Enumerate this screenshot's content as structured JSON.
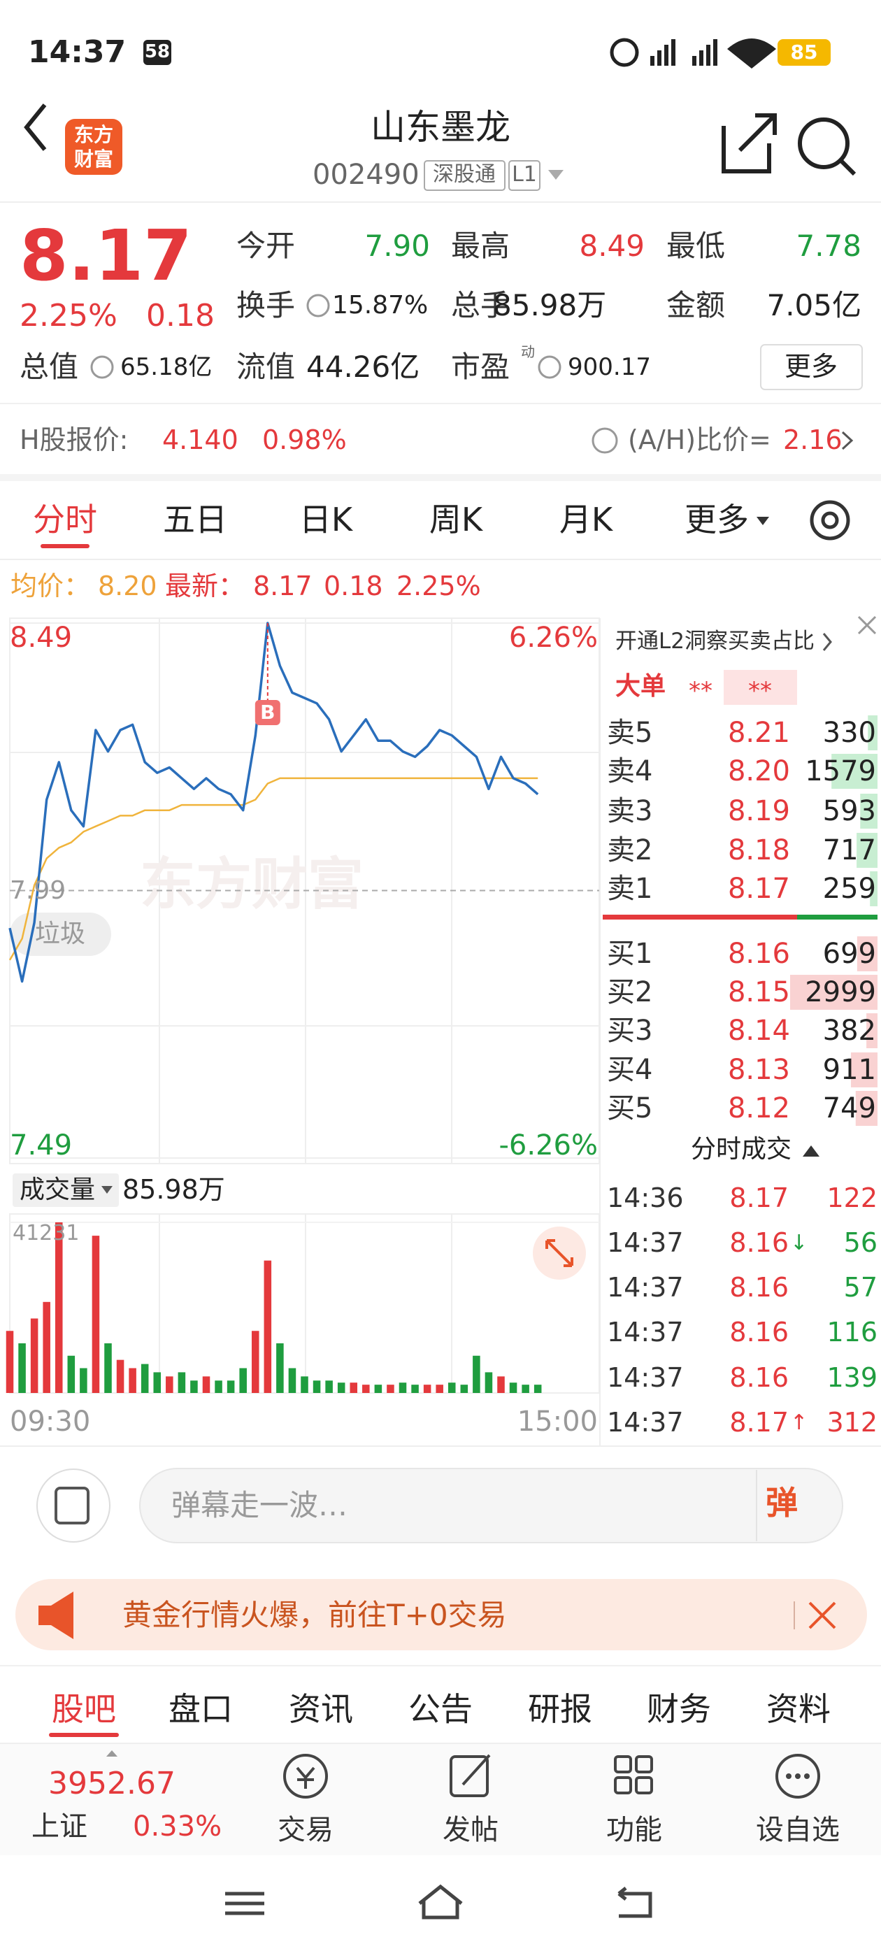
{
  "status_bar": {
    "time": "14:37",
    "badge": "58",
    "battery": "85"
  },
  "header": {
    "logo": [
      "东方",
      "财富"
    ],
    "title": "山东墨龙",
    "code": "002490",
    "tag": "深股通",
    "level": "L1"
  },
  "quote": {
    "price": "8.17",
    "change_pct": "2.25%",
    "change": "0.18",
    "open": {
      "label": "今开",
      "value": "7.90"
    },
    "high": {
      "label": "最高",
      "value": "8.49"
    },
    "low": {
      "label": "最低",
      "value": "7.78"
    },
    "turnover_rate": {
      "label": "换手",
      "value": "15.87%"
    },
    "volume": {
      "label": "总手",
      "value": "85.98万"
    },
    "amount": {
      "label": "金额",
      "value": "7.05亿"
    },
    "market_cap": {
      "label": "总值",
      "value": "65.18亿"
    },
    "float_cap": {
      "label": "流值",
      "value": "44.26亿"
    },
    "pe": {
      "label": "市盈",
      "note": "动",
      "value": "900.17"
    },
    "more": "更多"
  },
  "hshare": {
    "label": "H股报价:",
    "price": "4.140",
    "pct": "0.98%",
    "ratio_label": "(A/H)比价=",
    "ratio": "2.16"
  },
  "tabs": {
    "items": [
      "分时",
      "五日",
      "日K",
      "周K",
      "月K"
    ],
    "more": "更多"
  },
  "intraday": {
    "type": "line",
    "legend": {
      "avg_label": "均价：",
      "avg": "8.20",
      "latest_label": "最新：",
      "latest": "8.17",
      "change": "0.18",
      "pct": "2.25%"
    },
    "xlim": [
      0,
      240
    ],
    "xticks": [
      {
        "value": 0,
        "label": "09:30"
      },
      {
        "value": 240,
        "label": "15:00"
      }
    ],
    "ylim": [
      7.49,
      8.49
    ],
    "yticks": [
      {
        "value": 8.49,
        "label": "8.49"
      },
      {
        "value": 7.99,
        "label": "7.99"
      },
      {
        "value": 7.49,
        "label": "7.49"
      }
    ],
    "pct_labels": [
      "6.26%",
      "-6.26%"
    ],
    "x": [
      0,
      5,
      10,
      15,
      20,
      25,
      30,
      35,
      40,
      45,
      50,
      55,
      60,
      65,
      70,
      75,
      80,
      85,
      90,
      95,
      100,
      105,
      110,
      115,
      120,
      125,
      130,
      135,
      140,
      145,
      150,
      155,
      160,
      165,
      170,
      175,
      180,
      185,
      190,
      195,
      200,
      205,
      210,
      215
    ],
    "price": [
      7.92,
      7.82,
      7.93,
      8.16,
      8.23,
      8.14,
      8.11,
      8.29,
      8.25,
      8.29,
      8.3,
      8.23,
      8.21,
      8.22,
      8.2,
      8.18,
      8.2,
      8.18,
      8.17,
      8.14,
      8.28,
      8.49,
      8.41,
      8.36,
      8.35,
      8.34,
      8.31,
      8.25,
      8.28,
      8.31,
      8.27,
      8.27,
      8.25,
      8.24,
      8.26,
      8.29,
      8.28,
      8.26,
      8.24,
      8.18,
      8.24,
      8.2,
      8.19,
      8.17
    ],
    "avg": [
      7.86,
      7.9,
      8.0,
      8.05,
      8.07,
      8.08,
      8.1,
      8.11,
      8.12,
      8.13,
      8.13,
      8.14,
      8.14,
      8.14,
      8.15,
      8.15,
      8.15,
      8.15,
      8.15,
      8.15,
      8.16,
      8.19,
      8.2,
      8.2,
      8.2,
      8.2,
      8.2,
      8.2,
      8.2,
      8.2,
      8.2,
      8.2,
      8.2,
      8.2,
      8.2,
      8.2,
      8.2,
      8.2,
      8.2,
      8.2,
      8.2,
      8.2,
      8.2,
      8.2
    ],
    "buy_marker": {
      "label": "B",
      "x": 105,
      "price": 8.49
    },
    "tag": "垃圾",
    "watermark": "东方财富",
    "volume": {
      "label": "成交量",
      "total": "85.98万",
      "ylim": [
        0,
        41231
      ],
      "yticks": [
        41231
      ],
      "values": [
        15000,
        12000,
        18000,
        22000,
        41231,
        9000,
        6000,
        38000,
        12000,
        8000,
        6000,
        7000,
        5000,
        4000,
        5000,
        3000,
        4000,
        3000,
        3000,
        6000,
        15000,
        32000,
        12000,
        6000,
        4000,
        3000,
        3000,
        2500,
        2500,
        2000,
        2000,
        2000,
        2500,
        2000,
        2000,
        2000,
        2500,
        2000,
        9000,
        5000,
        4000,
        2500,
        2000,
        2000
      ]
    }
  },
  "order_book": {
    "promo": "开通L2洞察买卖占比",
    "big_order": {
      "label": "大单",
      "buy": "**",
      "sell": "**"
    },
    "asks": [
      {
        "label": "卖5",
        "price": "8.21",
        "qty": 330
      },
      {
        "label": "卖4",
        "price": "8.20",
        "qty": 1579
      },
      {
        "label": "卖3",
        "price": "8.19",
        "qty": 593
      },
      {
        "label": "卖2",
        "price": "8.18",
        "qty": 717
      },
      {
        "label": "卖1",
        "price": "8.17",
        "qty": 259
      }
    ],
    "bids": [
      {
        "label": "买1",
        "price": "8.16",
        "qty": 699
      },
      {
        "label": "买2",
        "price": "8.15",
        "qty": 2999
      },
      {
        "label": "买3",
        "price": "8.14",
        "qty": 382
      },
      {
        "label": "买4",
        "price": "8.13",
        "qty": 911
      },
      {
        "label": "买5",
        "price": "8.12",
        "qty": 749
      }
    ],
    "trades_title": "分时成交",
    "trades": [
      {
        "time": "14:36",
        "price": "8.17",
        "qty": 122,
        "color": "#e4393c"
      },
      {
        "time": "14:37",
        "price": "8.16",
        "arrow": "↓",
        "qty": 56,
        "color": "#1f9d3f"
      },
      {
        "time": "14:37",
        "price": "8.16",
        "qty": 57,
        "color": "#1f9d3f"
      },
      {
        "time": "14:37",
        "price": "8.16",
        "qty": 116,
        "color": "#1f9d3f"
      },
      {
        "time": "14:37",
        "price": "8.16",
        "qty": 139,
        "color": "#1f9d3f"
      },
      {
        "time": "14:37",
        "price": "8.17",
        "arrow": "↑",
        "qty": 312,
        "color": "#e4393c"
      }
    ]
  },
  "comment": {
    "placeholder": "弹幕走一波…",
    "button": "弹"
  },
  "banner": {
    "text": "黄金行情火爆，前往T+0交易"
  },
  "tabs2": [
    "股吧",
    "盘口",
    "资讯",
    "公告",
    "研报",
    "财务",
    "资料"
  ],
  "bottom_nav": {
    "index": {
      "value": "3952.67",
      "name": "上证",
      "pct": "0.33%"
    },
    "items": [
      "交易",
      "发帖",
      "功能",
      "设自选"
    ]
  }
}
